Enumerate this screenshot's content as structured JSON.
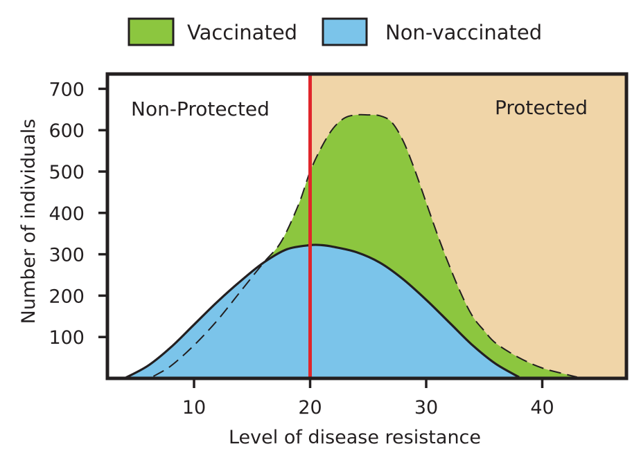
{
  "chart_data": {
    "type": "area",
    "xlabel": "Level of disease resistance",
    "ylabel": "Number of individuals",
    "xlim": [
      0,
      47
    ],
    "ylim": [
      0,
      700
    ],
    "xticks": [
      10,
      20,
      30,
      40
    ],
    "yticks": [
      100,
      200,
      300,
      400,
      500,
      600,
      700
    ],
    "threshold_x": 20,
    "regions": [
      {
        "label": "Non-Protected",
        "side": "left",
        "fill": "#ffffff"
      },
      {
        "label": "Protected",
        "side": "right",
        "fill": "#f0d5a8"
      }
    ],
    "legend_position": "top",
    "series": [
      {
        "name": "Vaccinated",
        "color": "#8cc63f",
        "outline": "dashed",
        "x": [
          6.5,
          8,
          10,
          12,
          14,
          16,
          17.5,
          19,
          20,
          21,
          22,
          23,
          24,
          25,
          26,
          27,
          28,
          29,
          30,
          31,
          32,
          33,
          34,
          35,
          36,
          38,
          40,
          42,
          43
        ],
        "y": [
          5,
          30,
          80,
          140,
          210,
          280,
          330,
          420,
          500,
          560,
          605,
          630,
          637,
          637,
          635,
          620,
          575,
          505,
          425,
          345,
          272,
          205,
          150,
          115,
          85,
          50,
          25,
          10,
          3
        ]
      },
      {
        "name": "Non-vaccinated",
        "color": "#7bc4ea",
        "outline": "solid",
        "x": [
          4,
          6,
          8,
          10,
          12,
          14,
          16,
          18,
          20,
          21,
          22,
          24,
          26,
          28,
          30,
          32,
          34,
          36,
          38
        ],
        "y": [
          0,
          30,
          75,
          130,
          185,
          235,
          280,
          312,
          322,
          322,
          318,
          305,
          280,
          240,
          190,
          135,
          80,
          35,
          3
        ]
      }
    ]
  }
}
